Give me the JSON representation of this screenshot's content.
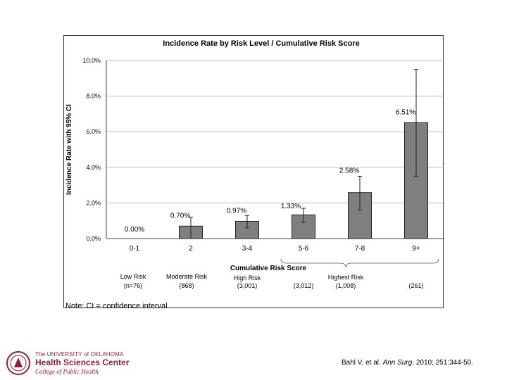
{
  "chart_data": {
    "type": "bar",
    "title": "Incidence Rate by Risk Level / Cumulative Risk Score",
    "xlabel": "Cumulative Risk Score",
    "ylabel": "Incidence Rate with 95% CI",
    "ylim": [
      0,
      10
    ],
    "yticks": [
      "0.0%",
      "2.0%",
      "4.0%",
      "6.0%",
      "8.0%",
      "10.0%"
    ],
    "grid": true,
    "categories": [
      "0-1",
      "2",
      "3-4",
      "5-6",
      "7-8",
      "9+"
    ],
    "values": [
      0.0,
      0.7,
      0.97,
      1.33,
      2.58,
      6.51
    ],
    "value_labels": [
      "0.00%",
      "0.70%",
      "0.97%",
      "1.33%",
      "2.58%",
      "6.51%"
    ],
    "ci_lower": [
      null,
      0.0,
      0.6,
      0.9,
      1.6,
      3.5
    ],
    "ci_upper": [
      null,
      1.2,
      1.3,
      1.7,
      3.5,
      9.5
    ],
    "risk_groups": [
      {
        "label": "Low Risk",
        "n": "(n=76)"
      },
      {
        "label": "Moderate Risk",
        "n": "(868)"
      },
      {
        "label": "High Risk",
        "n": "(3,001)"
      },
      {
        "label": "",
        "n": "(3,012)"
      },
      {
        "label": "Highest Risk",
        "n": "(1,008)"
      },
      {
        "label": "",
        "n": "(261)"
      }
    ],
    "note": "Note:   CI = confidence interval",
    "colors": {
      "bar": "#7f7f7f",
      "bar_edge": "#222222",
      "grid": "#bfbfbf"
    }
  },
  "footer": {
    "logo_line1": "The UNIVERSITY of OKLAHOMA",
    "logo_line2": "Health Sciences Center",
    "logo_line3": "College of Public Health",
    "citation_authors": "Bahl V, et al. ",
    "citation_journal": "Ann Surg",
    "citation_rest": ". 2010; 251:344-50."
  }
}
